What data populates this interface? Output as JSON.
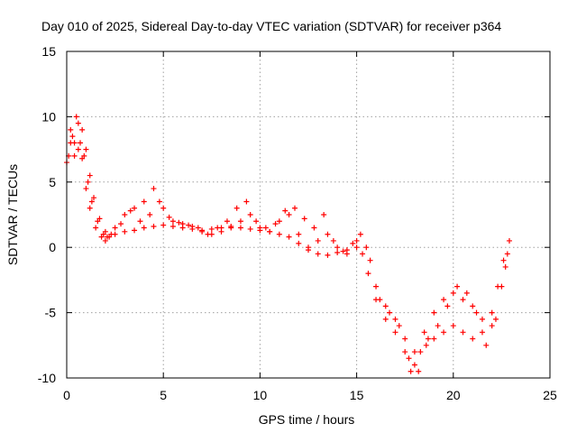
{
  "chart_data": {
    "type": "scatter",
    "title": "Day 010 of 2025, Sidereal Day-to-day VTEC variation (SDTVAR) for receiver p364",
    "xlabel": "GPS time / hours",
    "ylabel": "SDTVAR / TECUs",
    "xlim": [
      0,
      25
    ],
    "ylim": [
      -10,
      15
    ],
    "x_ticks": [
      "0",
      "5",
      "10",
      "15",
      "20",
      "25"
    ],
    "y_ticks": [
      "15",
      "10",
      "5",
      "0",
      "-5",
      "-10"
    ],
    "x_tick_values": [
      0,
      5,
      10,
      15,
      20,
      25
    ],
    "y_tick_values": [
      15,
      10,
      5,
      0,
      -5,
      -10
    ],
    "grid": true,
    "marker": "plus",
    "point_color": "#ff0000",
    "series": [
      {
        "x": [
          0.0,
          0.2,
          0.4,
          0.6,
          0.8,
          1.0,
          1.2,
          1.5,
          1.8,
          2.0,
          2.2,
          2.5,
          3.0,
          3.5,
          4.0,
          4.5,
          5.0,
          5.5,
          6.0,
          6.5,
          7.0,
          7.5,
          8.0,
          8.5,
          9.0,
          9.5,
          10.0,
          10.5,
          11.0,
          11.5,
          12.0,
          12.5,
          13.0,
          13.5,
          14.0,
          14.5,
          15.0,
          15.3,
          15.6,
          16.0,
          16.5,
          17.0,
          17.5,
          17.8,
          18.0,
          18.3,
          18.6,
          19.0,
          19.5,
          20.0,
          20.5,
          21.0,
          21.5,
          22.0,
          22.3,
          22.6,
          22.9
        ],
        "y": [
          6.5,
          9.0,
          8.0,
          7.5,
          6.8,
          4.5,
          3.0,
          1.5,
          0.8,
          0.5,
          0.8,
          1.0,
          1.2,
          1.3,
          1.5,
          1.6,
          1.7,
          1.6,
          1.5,
          1.4,
          1.3,
          1.4,
          1.5,
          1.6,
          1.5,
          1.4,
          1.3,
          1.2,
          1.0,
          0.8,
          0.3,
          -0.2,
          -0.5,
          -0.6,
          -0.4,
          -0.2,
          0.0,
          -0.5,
          -2.0,
          -4.0,
          -5.5,
          -6.5,
          -8.0,
          -9.5,
          -9.0,
          -8.0,
          -7.5,
          -7.0,
          -6.5,
          -6.0,
          -6.5,
          -7.0,
          -6.5,
          -5.0,
          -3.0,
          -1.0,
          0.5
        ]
      },
      {
        "x": [
          0.1,
          0.3,
          0.5,
          0.7,
          0.9,
          1.1,
          1.3,
          1.6,
          1.9,
          2.1,
          2.5,
          3.0,
          3.5,
          4.0,
          4.5,
          5.0,
          5.5,
          6.0,
          6.5,
          7.0,
          7.5,
          8.0,
          8.5,
          9.0,
          9.5,
          10.0,
          10.5,
          11.0,
          11.5,
          12.0,
          12.5,
          13.0,
          13.5,
          14.0,
          14.5,
          15.0,
          15.5,
          16.0,
          16.5,
          17.0,
          17.5,
          18.0,
          18.5,
          19.0,
          19.5,
          20.0,
          20.5,
          21.0,
          21.5,
          22.0,
          22.5,
          22.8
        ],
        "y": [
          7.0,
          8.5,
          10.0,
          8.0,
          7.0,
          5.0,
          3.5,
          2.0,
          1.0,
          0.8,
          1.5,
          2.5,
          3.0,
          3.5,
          4.5,
          3.0,
          2.0,
          1.8,
          1.6,
          1.2,
          1.0,
          1.2,
          1.5,
          2.0,
          2.5,
          1.5,
          1.2,
          2.0,
          2.5,
          1.0,
          0.0,
          0.5,
          1.0,
          0.0,
          -0.5,
          0.5,
          0.0,
          -3.0,
          -4.5,
          -5.5,
          -7.0,
          -8.0,
          -6.5,
          -5.0,
          -4.0,
          -3.5,
          -4.0,
          -4.5,
          -5.5,
          -6.0,
          -3.0,
          -0.5
        ]
      },
      {
        "x": [
          0.2,
          0.4,
          0.6,
          0.8,
          1.0,
          1.2,
          1.4,
          1.7,
          2.0,
          2.3,
          2.8,
          3.3,
          3.8,
          4.3,
          4.8,
          5.3,
          5.8,
          6.3,
          6.8,
          7.3,
          7.8,
          8.3,
          8.8,
          9.3,
          9.8,
          10.3,
          10.8,
          11.3,
          11.8,
          12.3,
          12.8,
          13.3,
          13.8,
          14.3,
          14.8,
          15.2,
          15.7,
          16.2,
          16.7,
          17.2,
          17.7,
          18.2,
          18.7,
          19.2,
          19.7,
          20.2,
          20.7,
          21.2,
          21.7,
          22.2,
          22.7
        ],
        "y": [
          8.0,
          7.0,
          9.5,
          9.0,
          7.5,
          5.5,
          3.8,
          2.2,
          1.2,
          1.0,
          1.8,
          2.8,
          2.0,
          2.5,
          3.5,
          2.3,
          1.9,
          1.7,
          1.5,
          1.0,
          1.5,
          2.0,
          3.0,
          3.5,
          2.0,
          1.5,
          1.8,
          2.8,
          3.0,
          2.2,
          1.5,
          2.5,
          0.5,
          -0.3,
          0.3,
          1.0,
          -1.0,
          -4.0,
          -5.0,
          -6.0,
          -8.5,
          -9.5,
          -7.0,
          -6.0,
          -4.5,
          -3.0,
          -3.5,
          -5.0,
          -7.5,
          -5.5,
          -1.5
        ]
      }
    ]
  }
}
